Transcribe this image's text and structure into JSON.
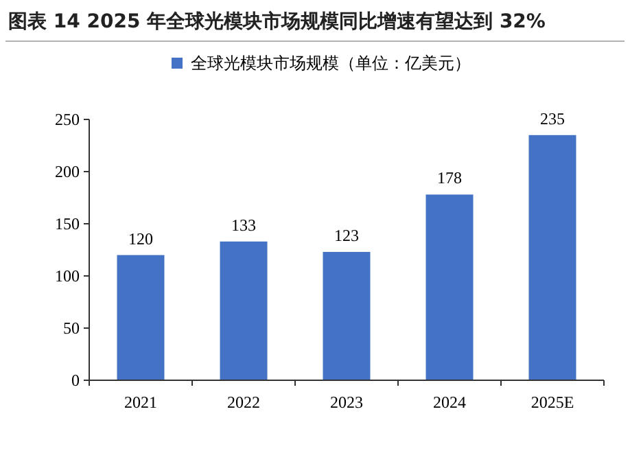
{
  "chart_data": {
    "type": "bar",
    "title": "图表 14 2025 年全球光模块市场规模同比增速有望达到 32%",
    "categories": [
      "2021",
      "2022",
      "2023",
      "2024",
      "2025E"
    ],
    "series": [
      {
        "name": "全球光模块市场规模（单位：亿美元）",
        "color": "#4472c4",
        "values": [
          120,
          133,
          123,
          178,
          235
        ]
      }
    ],
    "ylim": [
      0,
      250
    ],
    "yticks": [
      0,
      50,
      100,
      150,
      200,
      250
    ],
    "data_labels": true,
    "legend": "top"
  }
}
